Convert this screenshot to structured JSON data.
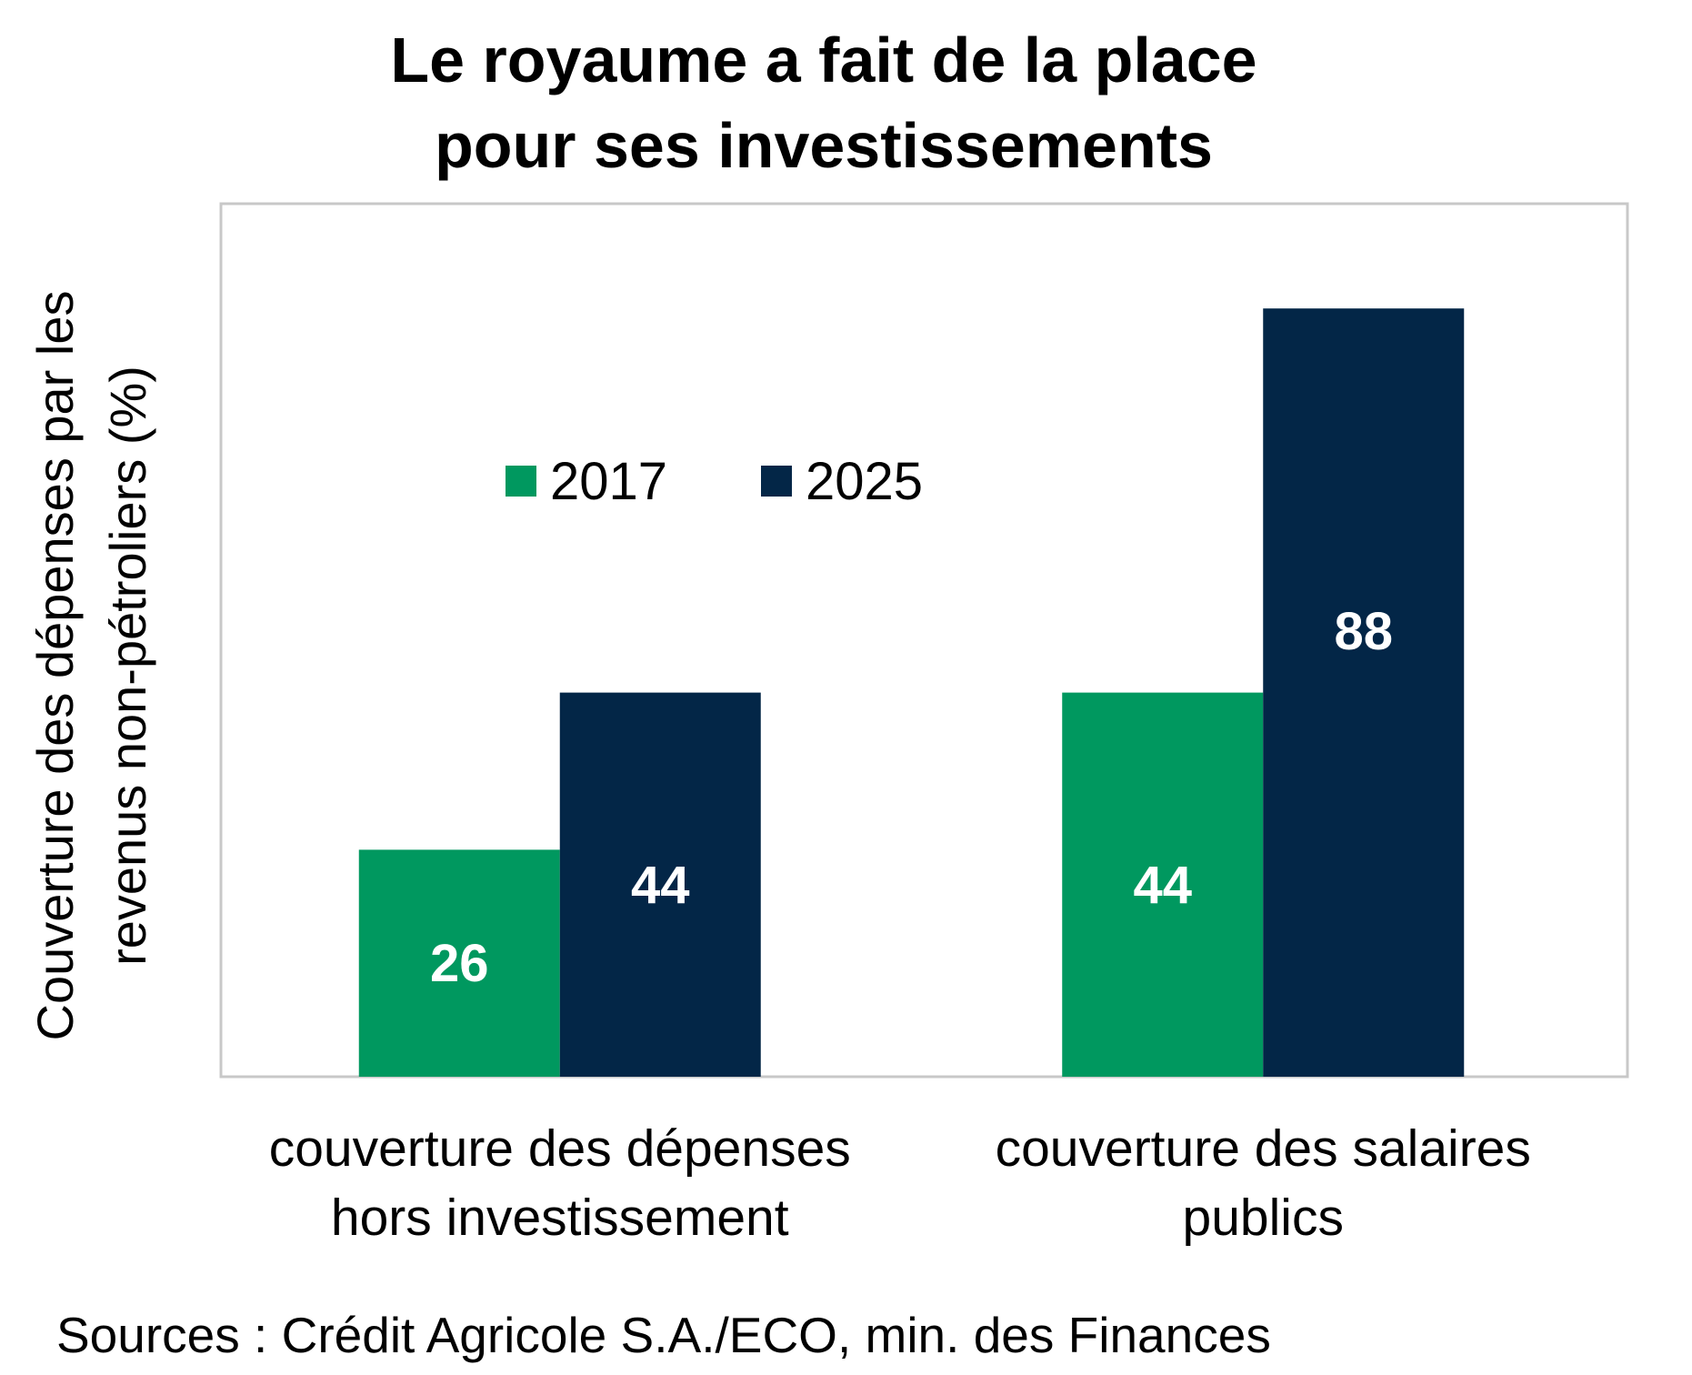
{
  "chart_data": {
    "type": "bar",
    "title": [
      "Le royaume a fait de la place",
      "pour ses investissements"
    ],
    "ylabel": [
      "Couverture des dépenses par les",
      "revenus non-pétroliers (%)"
    ],
    "xlabel": "",
    "categories": [
      [
        "couverture des dépenses",
        "hors investissement"
      ],
      [
        "couverture des salaires",
        "publics"
      ]
    ],
    "series": [
      {
        "name": "2017",
        "values": [
          26,
          44
        ],
        "color": "#00985F"
      },
      {
        "name": "2025",
        "values": [
          44,
          88
        ],
        "color": "#032647"
      }
    ],
    "ylim": [
      0,
      100
    ],
    "grid": false,
    "legend_position": "top-left inside",
    "data_labels": true,
    "source": "Sources : Crédit Agricole S.A./ECO, min. des Finances"
  }
}
